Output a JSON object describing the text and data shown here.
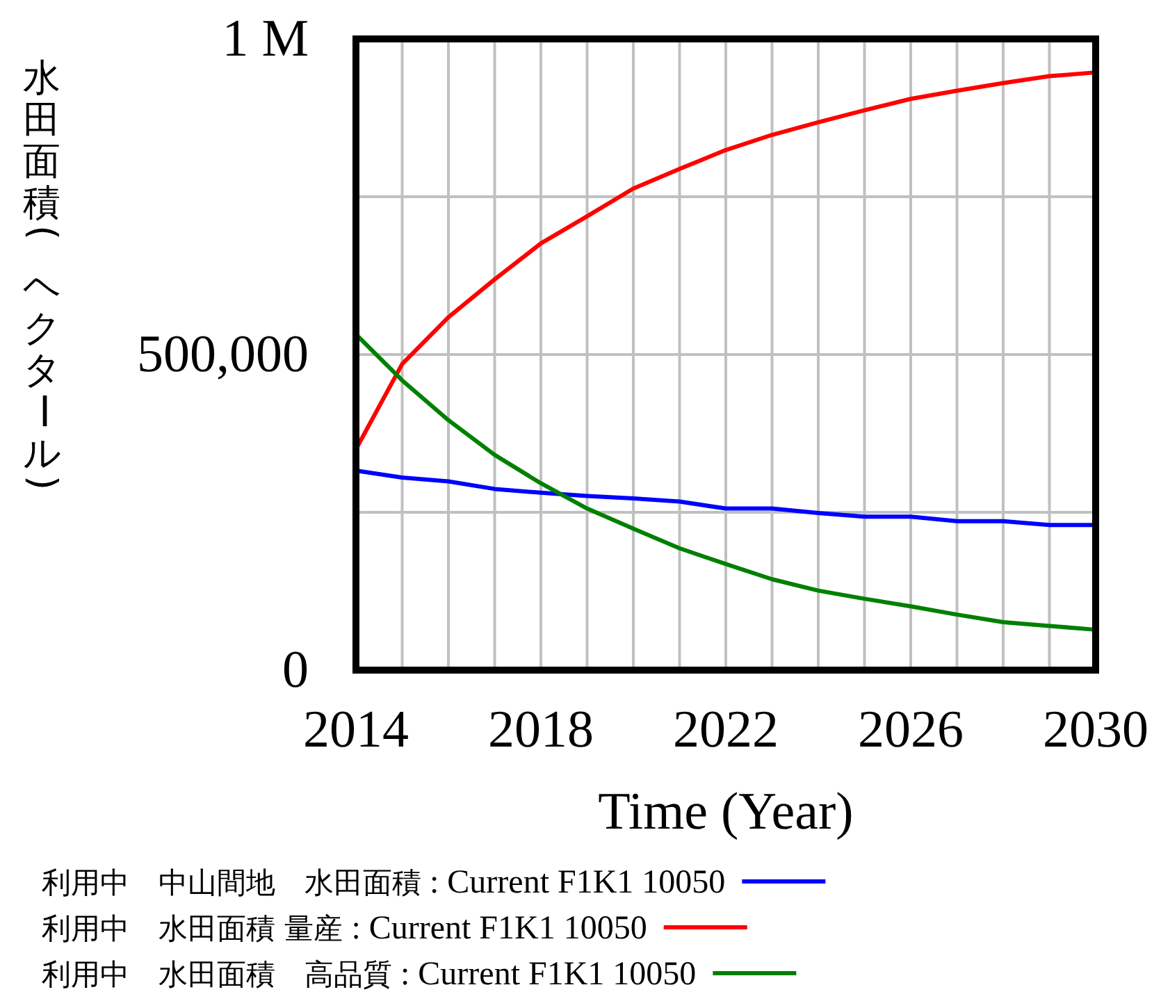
{
  "chart_data": {
    "type": "line",
    "ylabel": "水田面積(ヘクタール)",
    "xlabel": "Time (Year)",
    "x": [
      2014,
      2015,
      2016,
      2017,
      2018,
      2019,
      2020,
      2021,
      2022,
      2023,
      2024,
      2025,
      2026,
      2027,
      2028,
      2029,
      2030
    ],
    "xlim": [
      2014,
      2030
    ],
    "xticks": [
      2014,
      {
        "value": 2015,
        "label": null
      },
      {
        "value": 2016,
        "label": null
      },
      {
        "value": 2017,
        "label": null
      },
      2018,
      {
        "value": 2019,
        "label": null
      },
      {
        "value": 2020,
        "label": null
      },
      {
        "value": 2021,
        "label": null
      },
      2022,
      {
        "value": 2023,
        "label": null
      },
      {
        "value": 2024,
        "label": null
      },
      {
        "value": 2025,
        "label": null
      },
      2026,
      {
        "value": 2027,
        "label": null
      },
      {
        "value": 2028,
        "label": null
      },
      {
        "value": 2029,
        "label": null
      },
      2030
    ],
    "ylim": [
      0,
      1000000
    ],
    "yticks": [
      0,
      {
        "value": 250000,
        "label": null
      },
      {
        "value": 500000,
        "label": "500,000"
      },
      {
        "value": 750000,
        "label": null
      },
      {
        "value": 1000000,
        "label": "1 M"
      }
    ],
    "grid": true,
    "legend": "bottom",
    "line_style": "solid",
    "marker": "none",
    "series": [
      {
        "name": "利用中　中山間地　水田面積 : Current F1K1 10050",
        "color": "#0000ff",
        "values": [
          316000,
          305000,
          299000,
          287000,
          281000,
          276000,
          272000,
          267000,
          256000,
          256000,
          249000,
          243000,
          243000,
          236000,
          236000,
          230000,
          230000
        ]
      },
      {
        "name": "利用中　水田面積 量産 : Current F1K1 10050",
        "color": "#ff0000",
        "values": [
          350000,
          485000,
          559000,
          619000,
          676000,
          719000,
          763000,
          794000,
          824000,
          848000,
          868000,
          887000,
          905000,
          918000,
          930000,
          941000,
          947000
        ]
      },
      {
        "name": "利用中　水田面積　高品質 : Current F1K1 10050",
        "color": "#008000",
        "values": [
          532000,
          459000,
          396000,
          341000,
          296000,
          256000,
          224000,
          193000,
          168000,
          144000,
          126000,
          113000,
          101000,
          88000,
          76000,
          70000,
          64000
        ]
      }
    ]
  }
}
